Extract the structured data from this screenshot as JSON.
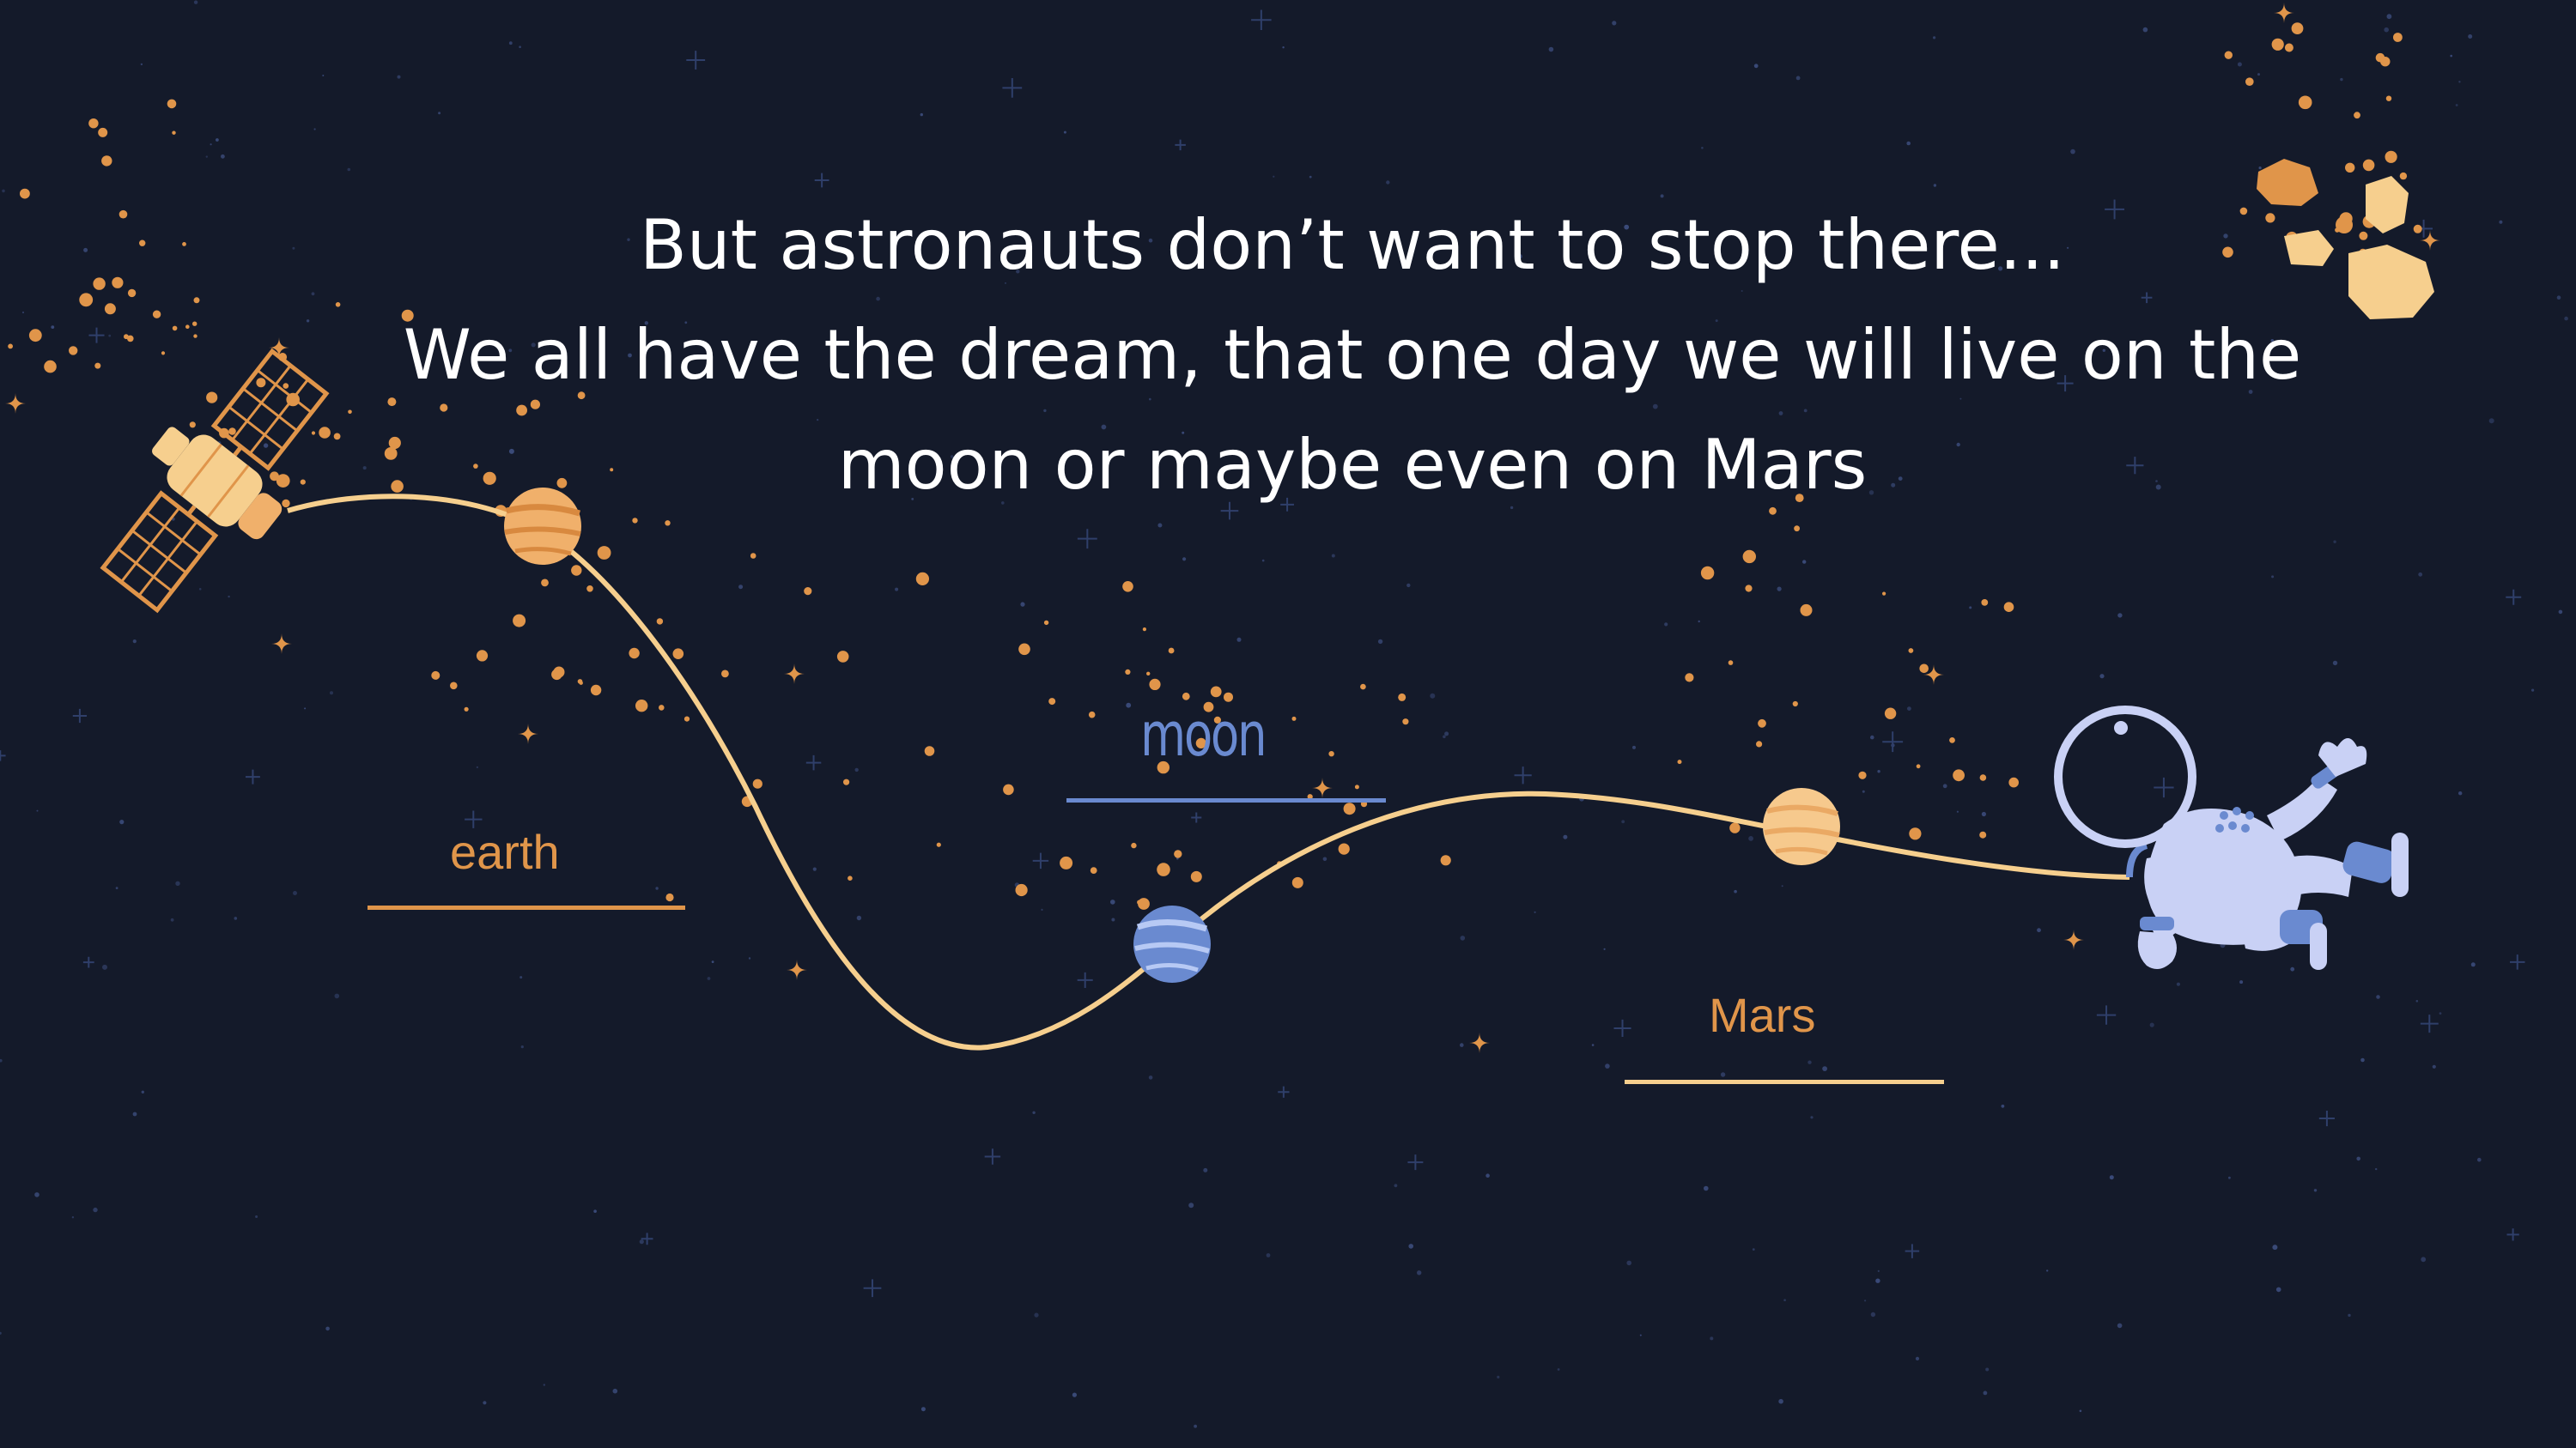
{
  "caption": {
    "line1": "But astronauts don’t want to stop there...",
    "line2": "We all have the dream, that one day we will live on the",
    "line3": "moon or maybe even on Mars"
  },
  "labels": {
    "earth": "earth",
    "moon": "moon",
    "mars": "Mars"
  },
  "colors": {
    "background": "#141a2a",
    "accent_orange": "#e0954a",
    "path_cream": "#f6cf8e",
    "moon_blue": "#6a8ad0",
    "astronaut_lavender": "#c9d1f5"
  },
  "icons": [
    "satellite-icon",
    "astronaut-icon",
    "asteroids-icon",
    "planet-icon",
    "sparkle-icon"
  ]
}
